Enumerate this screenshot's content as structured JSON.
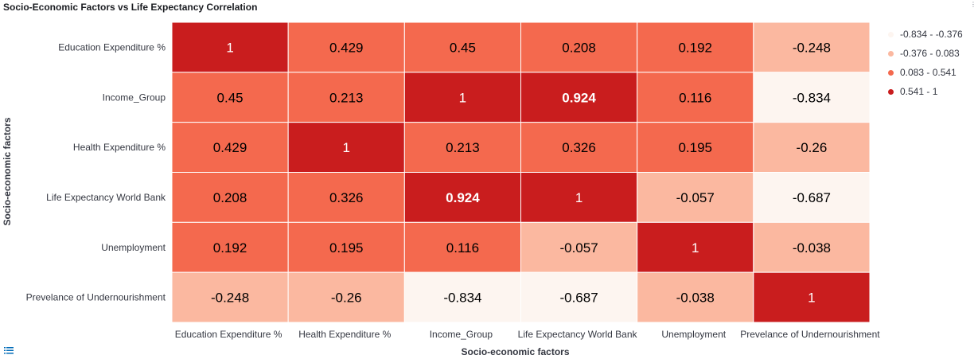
{
  "header": {
    "title": "Socio-Economic Factors vs Life Expectancy Correlation"
  },
  "colors": {
    "bin1": "#fdf5f0",
    "bin2": "#fbb8a0",
    "bin3": "#f4694e",
    "bin4": "#c91d1e",
    "text_dark": "#000000",
    "text_light": "#ffffff",
    "axis_text": "#343741"
  },
  "icons": {
    "corner": "menu-icon",
    "bottom": "list-icon"
  },
  "chart_data": {
    "type": "heatmap",
    "title": "Socio-Economic Factors vs Life Expectancy Correlation",
    "xlabel": "Socio-economic factors",
    "ylabel": "Socio-economic factors",
    "x_categories": [
      "Education Expenditure %",
      "Health Expenditure %",
      "Income_Group",
      "Life Expectancy World Bank",
      "Unemployment",
      "Prevelance of Undernourishment"
    ],
    "y_categories": [
      "Education Expenditure %",
      "Income_Group",
      "Health Expenditure %",
      "Life Expectancy World Bank",
      "Unemployment",
      "Prevelance of Undernourishment"
    ],
    "values": [
      [
        "1",
        "0.429",
        "0.45",
        "0.208",
        "0.192",
        "-0.248"
      ],
      [
        "0.45",
        "0.213",
        "1",
        "0.924",
        "0.116",
        "-0.834"
      ],
      [
        "0.429",
        "1",
        "0.213",
        "0.326",
        "0.195",
        "-0.26"
      ],
      [
        "0.208",
        "0.326",
        "0.924",
        "1",
        "-0.057",
        "-0.687"
      ],
      [
        "0.192",
        "0.195",
        "0.116",
        "-0.057",
        "1",
        "-0.038"
      ],
      [
        "-0.248",
        "-0.26",
        "-0.834",
        "-0.687",
        "-0.038",
        "1"
      ]
    ],
    "legend_position": "right",
    "legend": [
      {
        "label": "-0.834 - -0.376",
        "min": -0.834,
        "max": -0.376,
        "color": "#fdf5f0"
      },
      {
        "label": "-0.376 - 0.083",
        "min": -0.376,
        "max": 0.083,
        "color": "#fbb8a0"
      },
      {
        "label": "0.083 - 0.541",
        "min": 0.083,
        "max": 0.541,
        "color": "#f4694e"
      },
      {
        "label": "0.541 - 1",
        "min": 0.541,
        "max": 1,
        "color": "#c91d1e"
      }
    ]
  }
}
